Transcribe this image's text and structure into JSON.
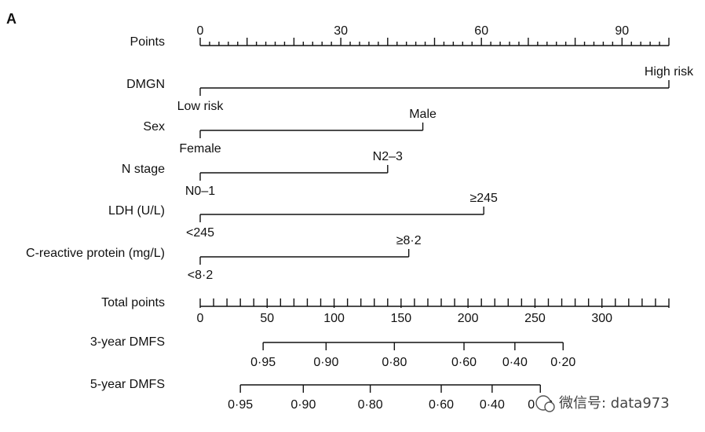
{
  "panel_label": "A",
  "watermark": "微信号: data973",
  "chart_data": {
    "type": "nomogram",
    "points_scale": {
      "label": "Points",
      "range": [
        0,
        100
      ],
      "major_ticks": [
        0,
        30,
        60,
        90
      ],
      "minor_step": 2
    },
    "predictors": [
      {
        "label": "DMGN",
        "low_label": "Low risk",
        "high_label": "High risk",
        "points": 100
      },
      {
        "label": "Sex",
        "low_label": "Female",
        "high_label": "Male",
        "points": 47.5
      },
      {
        "label": "N stage",
        "low_label": "N0–1",
        "high_label": "N2–3",
        "points": 40
      },
      {
        "label": "LDH (U/L)",
        "low_label": "<245",
        "high_label": "≥245",
        "points": 60.5
      },
      {
        "label": "C-reactive protein (mg/L)",
        "low_label": "<8·2",
        "high_label": "≥8·2",
        "points": 44.5
      }
    ],
    "total_points": {
      "label": "Total points",
      "range": [
        0,
        350
      ],
      "major_ticks": [
        0,
        50,
        100,
        150,
        200,
        250,
        300
      ],
      "minor_step": 10
    },
    "outcomes": [
      {
        "label": "3-year DMFS",
        "axis_range_total_points": [
          47,
          271
        ],
        "ticks": [
          {
            "label": "0·95",
            "total_points": 47
          },
          {
            "label": "0·90",
            "total_points": 94
          },
          {
            "label": "0·80",
            "total_points": 145
          },
          {
            "label": "0·60",
            "total_points": 197
          },
          {
            "label": "0·40",
            "total_points": 235
          },
          {
            "label": "0·20",
            "total_points": 271
          }
        ]
      },
      {
        "label": "5-year DMFS",
        "axis_range_total_points": [
          30,
          254
        ],
        "ticks": [
          {
            "label": "0·95",
            "total_points": 30
          },
          {
            "label": "0·90",
            "total_points": 77
          },
          {
            "label": "0·80",
            "total_points": 127
          },
          {
            "label": "0·60",
            "total_points": 180
          },
          {
            "label": "0·40",
            "total_points": 218
          },
          {
            "label": "0·20",
            "total_points": 254
          }
        ]
      }
    ]
  }
}
